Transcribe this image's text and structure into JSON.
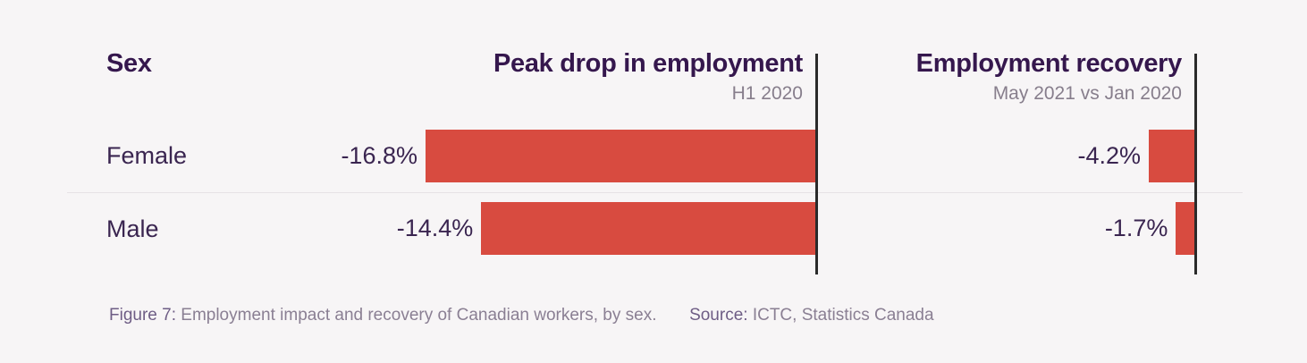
{
  "chart_data": [
    {
      "type": "bar",
      "orientation": "horizontal",
      "category_header": "Sex",
      "title": "Peak drop in employment",
      "subtitle": "H1 2020",
      "categories": [
        "Female",
        "Male"
      ],
      "values": [
        -16.8,
        -14.4
      ],
      "value_labels": [
        "-16.8%",
        "-14.4%"
      ],
      "unit": "%",
      "bar_color": "#d84b40"
    },
    {
      "type": "bar",
      "orientation": "horizontal",
      "title": "Employment recovery",
      "subtitle": "May 2021 vs Jan 2020",
      "categories": [
        "Female",
        "Male"
      ],
      "values": [
        -4.2,
        -1.7
      ],
      "value_labels": [
        "-4.2%",
        "-1.7%"
      ],
      "unit": "%",
      "bar_color": "#d84b40"
    }
  ],
  "caption": {
    "figure_label": "Figure 7:",
    "text": "Employment impact and recovery of Canadian workers, by sex.",
    "source_label": "Source:",
    "source_text": "ICTC, Statistics Canada"
  }
}
